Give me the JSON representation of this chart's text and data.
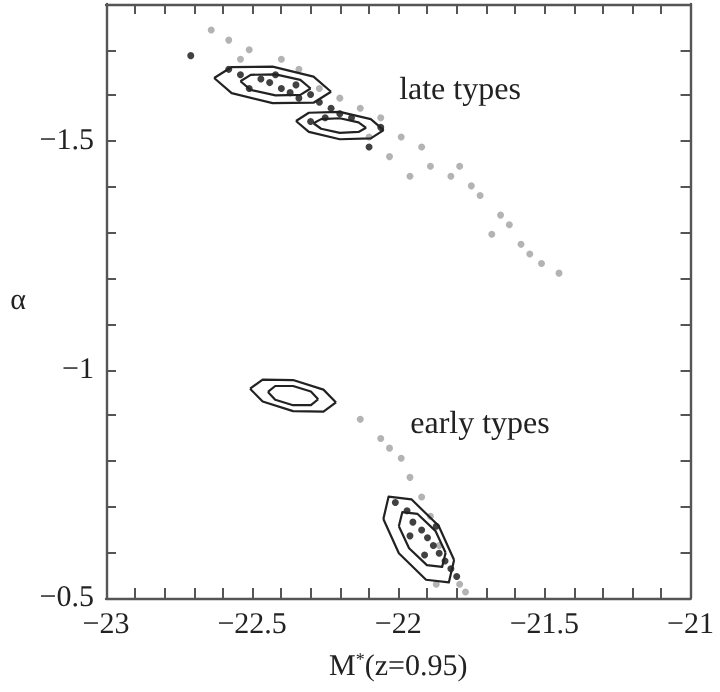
{
  "chart_data": {
    "type": "scatter",
    "xlabel": "M$^{*}$(z=0.95)",
    "ylabel": "α",
    "xlim": [
      -23,
      -21
    ],
    "ylim": [
      -0.5,
      -1.8
    ],
    "xticks": [
      -23,
      -22.5,
      -22,
      -21.5,
      -21
    ],
    "yticks": [
      -1.5,
      -1,
      -0.5
    ],
    "grid": false,
    "marker": "circle",
    "annotations": [
      "late types",
      "early types"
    ],
    "series": [
      {
        "color": "#a0a0a0",
        "x": [
          -22.64,
          -22.58,
          -22.51,
          -22.4,
          -22.34,
          -22.27,
          -22.2,
          -22.13,
          -22.06,
          -21.99,
          -21.92,
          -21.89,
          -21.82,
          -21.75,
          -21.72,
          -21.65,
          -21.62,
          -21.58,
          -21.51,
          -21.45,
          -22.03,
          -21.79,
          -22.54,
          -21.96,
          -21.68,
          -21.55,
          -22.1,
          -22.13,
          -22.06,
          -21.99,
          -21.96,
          -21.92,
          -21.89,
          -21.86,
          -21.79,
          -21.77,
          -22.03,
          -21.87
        ],
        "values": [
          -1.743,
          -1.721,
          -1.7,
          -1.679,
          -1.657,
          -1.615,
          -1.594,
          -1.572,
          -1.551,
          -1.509,
          -1.487,
          -1.445,
          -1.423,
          -1.402,
          -1.381,
          -1.338,
          -1.317,
          -1.274,
          -1.232,
          -1.211,
          -1.466,
          -1.445,
          -1.679,
          -1.423,
          -1.296,
          -1.253,
          -1.509,
          -0.891,
          -0.849,
          -0.806,
          -0.764,
          -0.721,
          -0.679,
          -0.615,
          -0.53,
          -0.513,
          -0.828,
          -0.53
        ]
      },
      {
        "color": "#111111",
        "x": [
          -22.58,
          -22.54,
          -22.47,
          -22.44,
          -22.4,
          -22.37,
          -22.34,
          -22.3,
          -22.27,
          -22.23,
          -22.51,
          -22.42,
          -22.35,
          -22.2,
          -22.16,
          -22.3,
          -22.25,
          -22.06,
          -22.1,
          -22.71,
          -22.01,
          -21.97,
          -21.95,
          -21.92,
          -21.9,
          -21.88,
          -21.86,
          -21.84,
          -21.82,
          -21.96,
          -21.87,
          -21.8,
          -21.91
        ],
        "values": [
          -1.657,
          -1.645,
          -1.636,
          -1.628,
          -1.615,
          -1.606,
          -1.594,
          -1.602,
          -1.585,
          -1.572,
          -1.615,
          -1.645,
          -1.623,
          -1.56,
          -1.551,
          -1.543,
          -1.551,
          -1.53,
          -1.487,
          -1.687,
          -0.709,
          -0.691,
          -0.666,
          -0.649,
          -0.632,
          -0.615,
          -0.598,
          -0.581,
          -0.564,
          -0.636,
          -0.657,
          -0.547,
          -0.594
        ]
      },
      {
        "type": "line",
        "color": "#222222",
        "marker": "none",
        "x": [
          -22.63,
          -22.57,
          -22.43,
          -22.29,
          -22.23
        ],
        "values": [
          -1.638,
          -1.662,
          -1.663,
          -1.641,
          -1.608
        ]
      },
      {
        "type": "line",
        "color": "#222222",
        "marker": "none",
        "x": [
          -22.63,
          -22.57,
          -22.43,
          -22.29,
          -22.23
        ],
        "values": [
          -1.638,
          -1.605,
          -1.583,
          -1.584,
          -1.608
        ]
      },
      {
        "type": "line",
        "color": "#222222",
        "marker": "none",
        "x": [
          -22.54,
          -22.505,
          -22.42,
          -22.335,
          -22.3
        ],
        "values": [
          -1.631,
          -1.645,
          -1.646,
          -1.634,
          -1.615
        ]
      },
      {
        "type": "line",
        "color": "#222222",
        "marker": "none",
        "x": [
          -22.54,
          -22.505,
          -22.42,
          -22.335,
          -22.3
        ],
        "values": [
          -1.631,
          -1.612,
          -1.6,
          -1.601,
          -1.615
        ]
      },
      {
        "type": "line",
        "color": "#222222",
        "marker": "none",
        "x": [
          -22.35,
          -22.306,
          -22.2,
          -22.094,
          -22.05
        ],
        "values": [
          -1.544,
          -1.562,
          -1.564,
          -1.548,
          -1.524
        ]
      },
      {
        "type": "line",
        "color": "#222222",
        "marker": "none",
        "x": [
          -22.35,
          -22.306,
          -22.2,
          -22.094,
          -22.05
        ],
        "values": [
          -1.544,
          -1.52,
          -1.504,
          -1.506,
          -1.524
        ]
      },
      {
        "type": "line",
        "color": "#222222",
        "marker": "none",
        "x": [
          -22.29,
          -22.264,
          -22.2,
          -22.136,
          -22.11
        ],
        "values": [
          -1.539,
          -1.548,
          -1.55,
          -1.541,
          -1.529
        ]
      },
      {
        "type": "line",
        "color": "#222222",
        "marker": "none",
        "x": [
          -22.29,
          -22.264,
          -22.2,
          -22.136,
          -22.11
        ],
        "values": [
          -1.539,
          -1.527,
          -1.518,
          -1.52,
          -1.529
        ]
      },
      {
        "type": "line",
        "color": "#222222",
        "marker": "none",
        "x": [
          -22.507,
          -22.464,
          -22.36,
          -22.256,
          -22.213
        ],
        "values": [
          -0.958,
          -0.978,
          -0.977,
          -0.956,
          -0.928
        ]
      },
      {
        "type": "line",
        "color": "#222222",
        "marker": "none",
        "x": [
          -22.507,
          -22.464,
          -22.36,
          -22.256,
          -22.213
        ],
        "values": [
          -0.958,
          -0.93,
          -0.909,
          -0.908,
          -0.928
        ]
      },
      {
        "type": "line",
        "color": "#222222",
        "marker": "none",
        "x": [
          -22.446,
          -22.421,
          -22.36,
          -22.299,
          -22.274
        ],
        "values": [
          -0.951,
          -0.964,
          -0.964,
          -0.952,
          -0.935
        ]
      },
      {
        "type": "line",
        "color": "#222222",
        "marker": "none",
        "x": [
          -22.446,
          -22.421,
          -22.36,
          -22.299,
          -22.274
        ],
        "values": [
          -0.951,
          -0.934,
          -0.922,
          -0.922,
          -0.935
        ]
      },
      {
        "type": "line",
        "color": "#222222",
        "marker": "none",
        "x": [
          -22.051,
          -21.998,
          -21.905,
          -21.827,
          -21.809
        ],
        "values": [
          -0.673,
          -0.598,
          -0.54,
          -0.534,
          -0.583
        ]
      },
      {
        "type": "line",
        "color": "#222222",
        "marker": "none",
        "x": [
          -22.051,
          -22.033,
          -21.955,
          -21.862,
          -21.809
        ],
        "values": [
          -0.673,
          -0.722,
          -0.716,
          -0.658,
          -0.583
        ]
      },
      {
        "type": "line",
        "color": "#222222",
        "marker": "none",
        "x": [
          -21.998,
          -21.963,
          -21.902,
          -21.85,
          -21.838
        ],
        "values": [
          -0.657,
          -0.609,
          -0.572,
          -0.568,
          -0.599
        ]
      },
      {
        "type": "line",
        "color": "#222222",
        "marker": "none",
        "x": [
          -21.998,
          -21.986,
          -21.934,
          -21.873,
          -21.838
        ],
        "values": [
          -0.657,
          -0.688,
          -0.684,
          -0.647,
          -0.599
        ]
      }
    ]
  }
}
